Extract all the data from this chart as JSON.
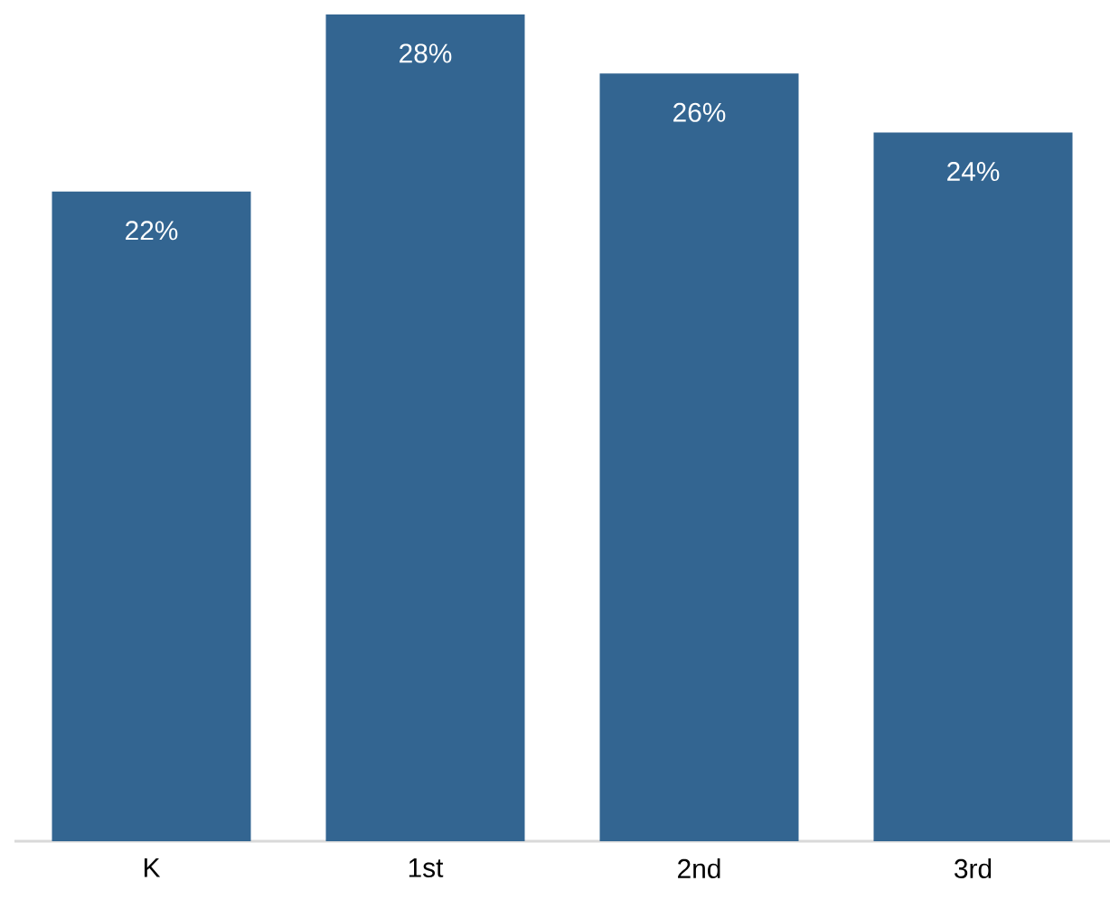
{
  "chart_data": {
    "type": "bar",
    "categories": [
      "K",
      "1st",
      "2nd",
      "3rd"
    ],
    "values": [
      22,
      28,
      26,
      24
    ],
    "value_labels": [
      "22%",
      "28%",
      "26%",
      "24%"
    ],
    "color": "#336591"
  }
}
